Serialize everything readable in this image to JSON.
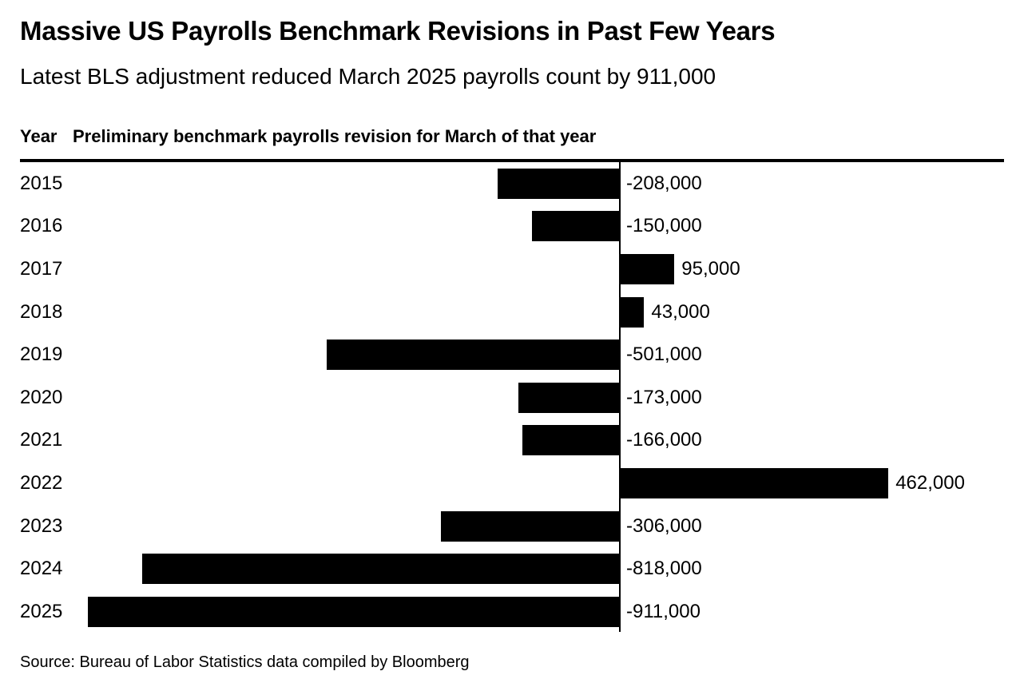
{
  "header": {
    "title": "Massive US Payrolls Benchmark Revisions in Past Few Years",
    "subtitle": "Latest BLS adjustment reduced March 2025 payrolls count by 911,000"
  },
  "table_header": {
    "year_label": "Year",
    "value_label": "Preliminary benchmark payrolls revision for March of that year"
  },
  "footer": {
    "source": "Source: Bureau of Labor Statistics data compiled by Bloomberg"
  },
  "colors": {
    "bar": "#000000",
    "text": "#000000",
    "background": "#ffffff",
    "axis_line": "#000000"
  },
  "chart_data": {
    "type": "bar",
    "orientation": "horizontal",
    "title": "Massive US Payrolls Benchmark Revisions in Past Few Years",
    "subtitle": "Latest BLS adjustment reduced March 2025 payrolls count by 911,000",
    "ylabel": "Year",
    "xlabel": "Preliminary benchmark payrolls revision for March of that year",
    "categories": [
      "2015",
      "2016",
      "2017",
      "2018",
      "2019",
      "2020",
      "2021",
      "2022",
      "2023",
      "2024",
      "2025"
    ],
    "values": [
      -208000,
      -150000,
      95000,
      43000,
      -501000,
      -173000,
      -166000,
      462000,
      -306000,
      -818000,
      -911000
    ],
    "value_labels": [
      "-208,000",
      "-150,000",
      "95,000",
      "43,000",
      "-501,000",
      "-173,000",
      "-166,000",
      "462,000",
      "-306,000",
      "-818,000",
      "-911,000"
    ],
    "xlim": [
      -911000,
      670000
    ],
    "grid": false,
    "legend": false,
    "bar_color": "#000000",
    "source": "Source: Bureau of Labor Statistics data compiled by Bloomberg"
  }
}
